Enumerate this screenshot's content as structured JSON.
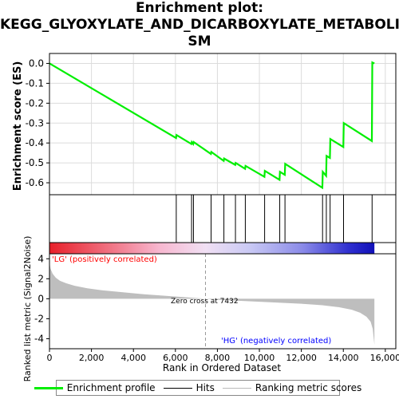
{
  "title_lines": [
    "Enrichment plot:",
    "KEGG_GLYOXYLATE_AND_DICARBOXYLATE_METABOLI",
    "SM"
  ],
  "colors": {
    "es_line": "#00ee00",
    "hits": "#000000",
    "metric_fill": "#bebebe",
    "pos_label": "#ff0000",
    "neg_label": "#0000ff",
    "zero_cross_line": "#999999"
  },
  "chart_data": [
    {
      "type": "line",
      "ylabel": "Enrichment score (ES)",
      "ylim": [
        -0.66,
        0.05
      ],
      "yticks": [
        0.0,
        -0.1,
        -0.2,
        -0.3,
        -0.4,
        -0.5,
        -0.6
      ],
      "ytick_labels": [
        "0.0",
        "-0.1",
        "-0.2",
        "-0.3",
        "-0.4",
        "-0.5",
        "-0.6"
      ],
      "xlim": [
        0,
        16500
      ],
      "grid": true,
      "series": [
        {
          "name": "Enrichment profile",
          "x": [
            0,
            6030,
            6050,
            6760,
            6780,
            6850,
            6870,
            7690,
            7710,
            8300,
            8320,
            8850,
            8870,
            9320,
            9340,
            10240,
            10260,
            10960,
            10980,
            11210,
            11230,
            13000,
            13020,
            13180,
            13200,
            13360,
            13380,
            14000,
            14020,
            15360,
            15380,
            15480
          ],
          "y": [
            0.0,
            -0.375,
            -0.36,
            -0.405,
            -0.395,
            -0.405,
            -0.395,
            -0.455,
            -0.445,
            -0.49,
            -0.478,
            -0.51,
            -0.5,
            -0.53,
            -0.515,
            -0.57,
            -0.54,
            -0.585,
            -0.545,
            -0.56,
            -0.505,
            -0.625,
            -0.545,
            -0.565,
            -0.465,
            -0.475,
            -0.38,
            -0.42,
            -0.3,
            -0.39,
            0.005,
            0.0
          ]
        }
      ]
    },
    {
      "type": "scatter",
      "name": "Hits",
      "hit_ranks": [
        6040,
        6770,
        6860,
        7700,
        8310,
        8860,
        9330,
        10250,
        10970,
        11220,
        13010,
        13190,
        13370,
        14010,
        15370
      ]
    },
    {
      "type": "area",
      "name": "Ranking metric scores",
      "xlabel": "Rank in Ordered Dataset",
      "ylabel": "Ranked list metric (Signal2Noise)",
      "ylim": [
        -5,
        4.5
      ],
      "yticks": [
        4,
        2,
        0,
        -2,
        -4
      ],
      "ytick_labels": [
        "4",
        "2",
        "0",
        "-2",
        "-4"
      ],
      "xlim": [
        0,
        16500
      ],
      "xticks": [
        0,
        2000,
        4000,
        6000,
        8000,
        10000,
        12000,
        14000,
        16000
      ],
      "xtick_labels": [
        "0",
        "2,000",
        "4,000",
        "6,000",
        "8,000",
        "10,000",
        "12,000",
        "14,000",
        "16,000"
      ],
      "x": [
        0,
        50,
        150,
        300,
        500,
        800,
        1200,
        1800,
        2500,
        3500,
        4500,
        5500,
        6500,
        7000,
        7432,
        8000,
        9000,
        10000,
        11000,
        12000,
        13000,
        13800,
        14400,
        14800,
        15100,
        15300,
        15400,
        15450,
        15480
      ],
      "y": [
        3.6,
        3.0,
        2.5,
        2.1,
        1.8,
        1.55,
        1.3,
        1.05,
        0.85,
        0.65,
        0.45,
        0.3,
        0.15,
        0.07,
        0.0,
        -0.1,
        -0.2,
        -0.3,
        -0.4,
        -0.5,
        -0.65,
        -0.85,
        -1.1,
        -1.4,
        -1.8,
        -2.3,
        -3.0,
        -4.0,
        -4.6
      ],
      "annotations": {
        "zero_cross": "Zero cross at 7432",
        "zero_cross_x": 7432,
        "pos_label": "'LG' (positively correlated)",
        "neg_label": "'HG' (negatively correlated)"
      }
    }
  ],
  "legend": {
    "items": [
      {
        "label": "Enrichment profile",
        "icon": "green-line-icon"
      },
      {
        "label": "Hits",
        "icon": "black-line-icon"
      },
      {
        "label": "Ranking metric scores",
        "icon": "gray-line-icon"
      }
    ]
  }
}
